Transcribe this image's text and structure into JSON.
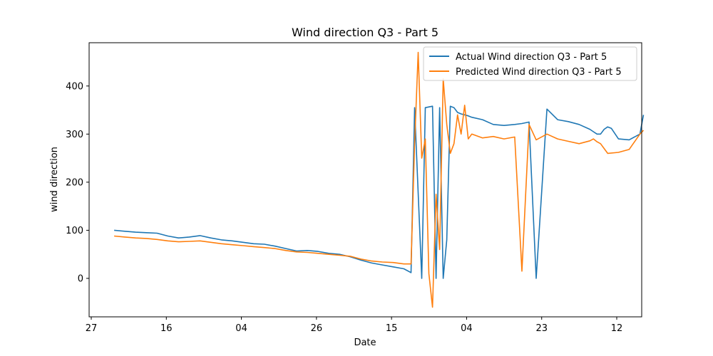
{
  "chart_data": {
    "type": "line",
    "title": "Wind direction Q3 - Part 5",
    "xlabel": "Date",
    "ylabel": "wind direction",
    "xticks": [
      "27",
      "16",
      "04",
      "26",
      "15",
      "04",
      "23",
      "12"
    ],
    "yticks": [
      0,
      100,
      200,
      300,
      400
    ],
    "ylim": [
      -80,
      490
    ],
    "xlim": [
      0,
      309
    ],
    "grid": false,
    "legend_position": "top-right",
    "series": [
      {
        "name": "Actual Wind direction Q3 - Part 5",
        "color": "#1f77b4",
        "x": [
          14,
          20,
          26,
          32,
          38,
          44,
          50,
          56,
          62,
          68,
          74,
          80,
          86,
          92,
          98,
          104,
          110,
          116,
          122,
          128,
          134,
          140,
          146,
          152,
          158,
          164,
          170,
          176,
          180,
          182,
          186,
          188,
          192,
          194,
          196,
          198,
          200,
          202,
          204,
          206,
          208,
          210,
          212,
          214,
          220,
          226,
          232,
          238,
          242,
          246,
          250,
          256,
          262,
          268,
          274,
          280,
          282,
          284,
          286,
          288,
          290,
          292,
          296,
          302,
          308,
          310
        ],
        "y": [
          100,
          98,
          96,
          95,
          94,
          88,
          84,
          86,
          89,
          84,
          80,
          78,
          75,
          72,
          71,
          67,
          62,
          57,
          58,
          56,
          52,
          50,
          45,
          38,
          32,
          28,
          24,
          20,
          12,
          355,
          0,
          355,
          358,
          0,
          355,
          0,
          80,
          358,
          355,
          345,
          342,
          340,
          338,
          335,
          330,
          320,
          318,
          320,
          322,
          325,
          0,
          352,
          330,
          326,
          320,
          310,
          305,
          300,
          300,
          310,
          315,
          312,
          290,
          288,
          300,
          340
        ]
      },
      {
        "name": "Predicted Wind direction Q3 - Part 5",
        "color": "#ff7f0e",
        "x": [
          14,
          20,
          26,
          32,
          38,
          44,
          50,
          56,
          62,
          68,
          74,
          80,
          86,
          92,
          98,
          104,
          110,
          116,
          122,
          128,
          134,
          140,
          146,
          152,
          158,
          164,
          170,
          176,
          180,
          182,
          184,
          186,
          188,
          190,
          192,
          194,
          196,
          198,
          200,
          202,
          204,
          206,
          208,
          210,
          212,
          214,
          220,
          226,
          232,
          238,
          242,
          246,
          250,
          256,
          262,
          268,
          274,
          280,
          282,
          284,
          286,
          288,
          290,
          296,
          302,
          308,
          310
        ],
        "y": [
          88,
          86,
          84,
          83,
          81,
          78,
          76,
          77,
          78,
          75,
          72,
          70,
          68,
          66,
          64,
          62,
          58,
          55,
          54,
          52,
          50,
          48,
          46,
          40,
          36,
          34,
          33,
          30,
          30,
          280,
          470,
          250,
          290,
          10,
          -60,
          175,
          60,
          415,
          320,
          260,
          280,
          340,
          300,
          360,
          290,
          300,
          292,
          295,
          290,
          294,
          15,
          320,
          288,
          300,
          290,
          285,
          280,
          286,
          290,
          284,
          280,
          270,
          260,
          262,
          268,
          300,
          308
        ]
      }
    ]
  }
}
